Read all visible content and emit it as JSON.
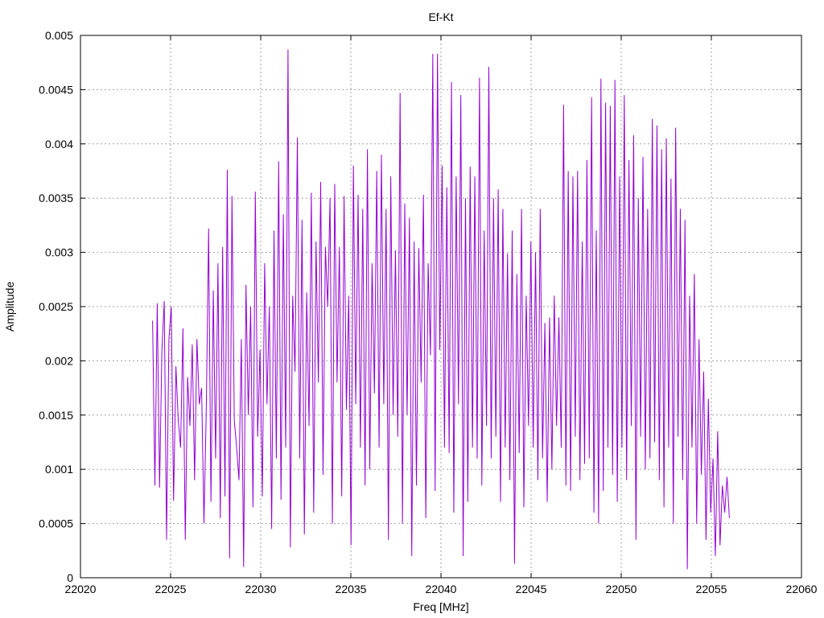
{
  "chart_data": {
    "type": "line",
    "title": "Ef-Kt",
    "xlabel": "Freq [MHz]",
    "ylabel": "Amplitude",
    "xlim": [
      22020,
      22060
    ],
    "ylim": [
      0,
      0.005
    ],
    "x_ticks": [
      22020,
      22025,
      22030,
      22035,
      22040,
      22045,
      22050,
      22055,
      22060
    ],
    "x_tick_labels": [
      "22020",
      "22025",
      "22030",
      "22035",
      "22040",
      "22045",
      "22050",
      "22055",
      "22060"
    ],
    "y_ticks": [
      0,
      0.0005,
      0.001,
      0.0015,
      0.002,
      0.0025,
      0.003,
      0.0035,
      0.004,
      0.0045,
      0.005
    ],
    "y_tick_labels": [
      "0",
      "0.0005",
      "0.001",
      "0.0015",
      "0.002",
      "0.0025",
      "0.003",
      "0.0035",
      "0.004",
      "0.0045",
      "0.005"
    ],
    "grid": true,
    "legend": "none",
    "series_color": "#9400d3",
    "series": [
      {
        "x_start": 22024.0,
        "x_end": 22056.0,
        "values": [
          0.00237,
          0.00085,
          0.00253,
          0.00083,
          0.0021,
          0.00255,
          0.00035,
          0.0022,
          0.0025,
          0.00071,
          0.00195,
          0.00145,
          0.0012,
          0.0023,
          0.00035,
          0.00185,
          0.0014,
          0.00215,
          0.0009,
          0.0022,
          0.0016,
          0.00175,
          0.0005,
          0.00155,
          0.00322,
          0.0007,
          0.00265,
          0.0011,
          0.0029,
          0.00055,
          0.00305,
          0.00075,
          0.00376,
          0.00018,
          0.00352,
          0.00145,
          0.0012,
          0.0009,
          0.0022,
          0.0001,
          0.0027,
          0.0015,
          0.0025,
          0.00065,
          0.00356,
          0.0013,
          0.0021,
          0.00075,
          0.0029,
          0.0016,
          0.0025,
          0.00045,
          0.0032,
          0.0011,
          0.00384,
          0.00072,
          0.00335,
          0.0012,
          0.00487,
          0.00028,
          0.0026,
          0.0019,
          0.00406,
          0.0011,
          0.0033,
          0.0004,
          0.00263,
          0.0014,
          0.00355,
          0.0006,
          0.0031,
          0.0018,
          0.00365,
          0.00095,
          0.00305,
          0.0025,
          0.0035,
          0.0005,
          0.00363,
          0.0018,
          0.00305,
          0.00075,
          0.00352,
          0.00155,
          0.0026,
          0.0003,
          0.0038,
          0.0016,
          0.00353,
          0.0012,
          0.0034,
          0.00085,
          0.00395,
          0.001,
          0.0029,
          0.0017,
          0.00375,
          0.0012,
          0.0039,
          0.0016,
          0.0034,
          0.00035,
          0.0037,
          0.0015,
          0.00302,
          0.0013,
          0.00447,
          0.0005,
          0.00345,
          0.0015,
          0.00332,
          0.0002,
          0.0031,
          0.00085,
          0.00304,
          0.0018,
          0.00353,
          0.00055,
          0.0029,
          0.00205,
          0.00483,
          0.0008,
          0.00483,
          0.0021,
          0.0038,
          0.0012,
          0.0036,
          0.00115,
          0.00457,
          0.0006,
          0.0037,
          0.0016,
          0.00445,
          0.0002,
          0.0035,
          0.0007,
          0.00379,
          0.0012,
          0.0037,
          0.0011,
          0.00461,
          0.00085,
          0.0032,
          0.0014,
          0.00471,
          0.0011,
          0.0035,
          0.0013,
          0.00358,
          0.0007,
          0.0034,
          0.0012,
          0.00299,
          0.0009,
          0.0032,
          0.00013,
          0.0028,
          0.00115,
          0.0034,
          0.00065,
          0.0026,
          0.0014,
          0.0031,
          0.0012,
          0.003,
          0.0009,
          0.0034,
          0.0011,
          0.00235,
          0.0007,
          0.0024,
          0.001,
          0.0026,
          0.0014,
          0.0024,
          0.0012,
          0.00436,
          0.00085,
          0.00375,
          0.0008,
          0.0037,
          0.0013,
          0.00375,
          0.0009,
          0.0031,
          0.00105,
          0.00385,
          0.0011,
          0.00443,
          0.0006,
          0.0032,
          0.0005,
          0.0046,
          0.0008,
          0.00438,
          0.0012,
          0.00435,
          0.00095,
          0.00459,
          0.0007,
          0.0037,
          0.0012,
          0.00445,
          0.0009,
          0.00385,
          0.0014,
          0.00408,
          0.00035,
          0.0035,
          0.0013,
          0.00388,
          0.001,
          0.0034,
          0.0011,
          0.00423,
          0.00125,
          0.00417,
          0.0009,
          0.00395,
          0.00065,
          0.00405,
          0.0012,
          0.00368,
          0.0005,
          0.00415,
          0.0013,
          0.0034,
          0.0009,
          0.0033,
          8e-05,
          0.0026,
          0.0012,
          0.0028,
          0.0005,
          0.0022,
          0.00095,
          0.0019,
          0.00035,
          0.00165,
          0.0006,
          0.0011,
          0.0002,
          0.00135,
          0.0003,
          0.00085,
          0.0006,
          0.00093,
          0.00055
        ]
      }
    ]
  }
}
